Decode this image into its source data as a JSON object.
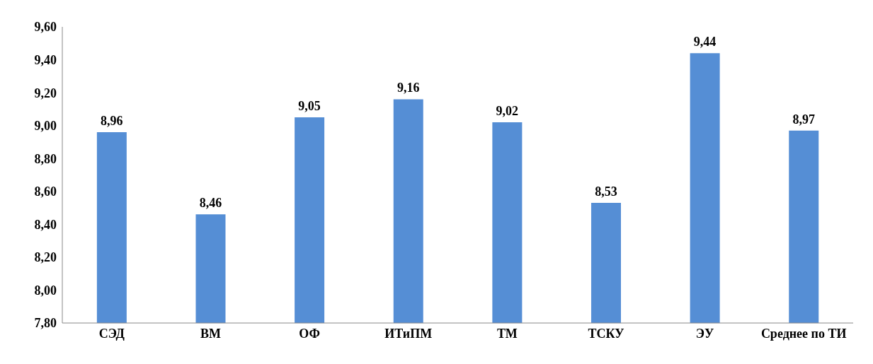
{
  "chart_data": {
    "type": "bar",
    "categories": [
      "СЭД",
      "ВМ",
      "ОФ",
      "ИТиПМ",
      "ТМ",
      "ТСКУ",
      "ЭУ",
      "Среднее по ТИ"
    ],
    "values": [
      8.96,
      8.46,
      9.05,
      9.16,
      9.02,
      8.53,
      9.44,
      8.97
    ],
    "value_labels": [
      "8,96",
      "8,46",
      "9,05",
      "9,16",
      "9,02",
      "8,53",
      "9,44",
      "8,97"
    ],
    "color": "#558ed5",
    "ylim": [
      7.8,
      9.6
    ],
    "yticks": [
      {
        "value": 7.8,
        "label": "7,80"
      },
      {
        "value": 8.0,
        "label": "8,00"
      },
      {
        "value": 8.2,
        "label": "8,20"
      },
      {
        "value": 8.4,
        "label": "8,40"
      },
      {
        "value": 8.6,
        "label": "8,60"
      },
      {
        "value": 8.8,
        "label": "8,80"
      },
      {
        "value": 9.0,
        "label": "9,00"
      },
      {
        "value": 9.2,
        "label": "9,20"
      },
      {
        "value": 9.4,
        "label": "9,40"
      },
      {
        "value": 9.6,
        "label": "9,60"
      }
    ],
    "grid": false,
    "legend": false
  }
}
